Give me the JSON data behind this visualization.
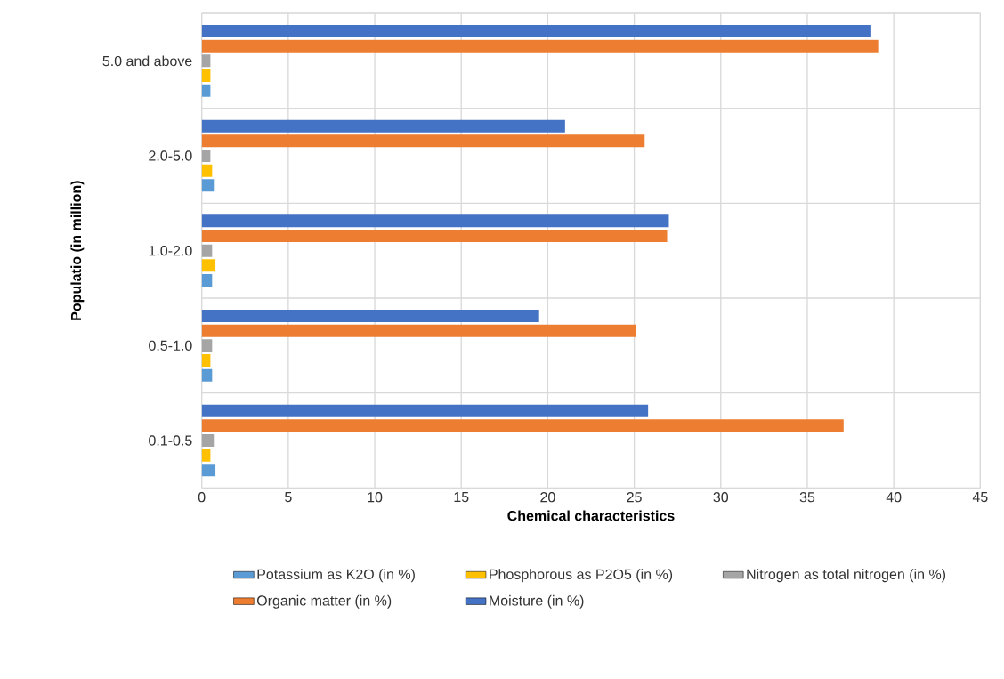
{
  "chart_data": {
    "type": "bar",
    "orientation": "horizontal",
    "xlabel": "Chemical characteristics",
    "ylabel": "Populatio (in million)",
    "categories": [
      "5.0 and above",
      "2.0-5.0",
      "1.0-2.0",
      "0.5-1.0",
      "0.1-0.5"
    ],
    "series": [
      {
        "name": "Potassium as K2O (in %)",
        "color": "#5b9bd5",
        "values": [
          0.5,
          0.7,
          0.6,
          0.6,
          0.8
        ]
      },
      {
        "name": "Phosphorous as P2O5 (in %)",
        "color": "#ffc000",
        "values": [
          0.5,
          0.6,
          0.8,
          0.5,
          0.5
        ]
      },
      {
        "name": "Nitrogen as total nitrogen (in %)",
        "color": "#a5a5a5",
        "values": [
          0.5,
          0.5,
          0.6,
          0.6,
          0.7
        ]
      },
      {
        "name": "Organic matter (in %)",
        "color": "#ed7d31",
        "values": [
          39.1,
          25.6,
          26.9,
          25.1,
          37.1
        ]
      },
      {
        "name": "Moisture (in %)",
        "color": "#4472c4",
        "values": [
          38.7,
          21.0,
          27.0,
          19.5,
          25.8
        ]
      }
    ],
    "xlim": [
      0,
      45
    ],
    "xticks": [
      0,
      5,
      10,
      15,
      20,
      25,
      30,
      35,
      40,
      45
    ],
    "grid": true,
    "legend": "bottom"
  }
}
